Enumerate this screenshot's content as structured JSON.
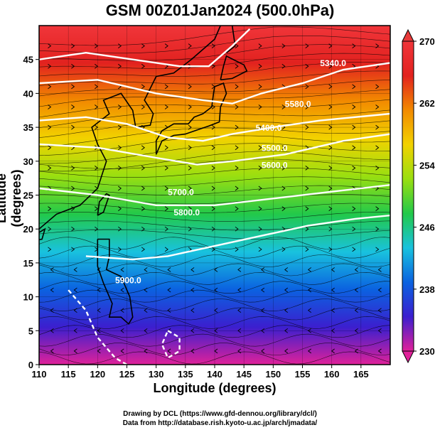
{
  "colors": {
    "field_stops": [
      "#e0219a",
      "#3b1fcf",
      "#0b62e0",
      "#19c2de",
      "#22c94a",
      "#9adf10",
      "#f2d200",
      "#f28a00",
      "#e2221f",
      "#f0353a"
    ],
    "contour": "#ffffff",
    "streamline": "#000000",
    "coast": "#000000"
  },
  "chart_data": {
    "type": "heatmap",
    "title": "GSM 00Z01Jan2024 (500.0hPa)",
    "xlabel": "Longitude (degrees)",
    "ylabel": "Latitude  (degrees)",
    "xlim": [
      110,
      170
    ],
    "ylim": [
      0,
      50
    ],
    "xticks": [
      "110",
      "115",
      "120",
      "125",
      "130",
      "135",
      "140",
      "145",
      "150",
      "155",
      "160",
      "165"
    ],
    "yticks": [
      "0",
      "5",
      "10",
      "15",
      "20",
      "25",
      "30",
      "35",
      "40",
      "45"
    ],
    "colorbar": {
      "min": 230,
      "max": 270,
      "ticks": [
        "230",
        "238",
        "246",
        "254",
        "262",
        "270"
      ]
    },
    "contour_labels": [
      {
        "text": "5340.0",
        "lon": 158,
        "lat": 44
      },
      {
        "text": "5580.0",
        "lon": 152,
        "lat": 38
      },
      {
        "text": "5400.0",
        "lon": 147,
        "lat": 34.5
      },
      {
        "text": "5500.0",
        "lon": 148,
        "lat": 31.5
      },
      {
        "text": "5600.0",
        "lon": 148,
        "lat": 29
      },
      {
        "text": "5700.0",
        "lon": 132,
        "lat": 25
      },
      {
        "text": "5800.0",
        "lon": 133,
        "lat": 22
      },
      {
        "text": "5900.0",
        "lon": 123,
        "lat": 12
      }
    ]
  },
  "credits": {
    "line1": "Drawing by DCL (https://www.gfd-dennou.org/library/dcl/)",
    "line2": "Data from http://database.rish.kyoto-u.ac.jp/arch/jmadata/"
  }
}
